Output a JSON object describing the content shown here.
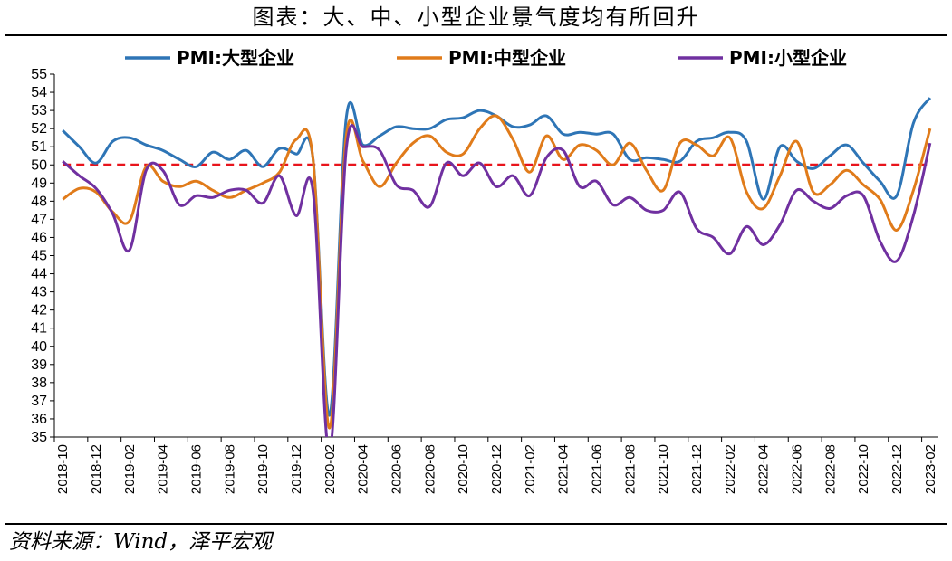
{
  "header": {
    "title": "图表：大、中、小型企业景气度均有所回升"
  },
  "footer": {
    "source": "资料来源：Wind，泽平宏观"
  },
  "chart_data": {
    "type": "line",
    "title": "图表：大、中、小型企业景气度均有所回升",
    "xlabel": "",
    "ylabel": "",
    "ylim": [
      35,
      55
    ],
    "yticks": [
      35,
      36,
      37,
      38,
      39,
      40,
      41,
      42,
      43,
      44,
      45,
      46,
      47,
      48,
      49,
      50,
      51,
      52,
      53,
      54,
      55
    ],
    "x": [
      "2018-10",
      "2018-11",
      "2018-12",
      "2019-01",
      "2019-02",
      "2019-03",
      "2019-04",
      "2019-05",
      "2019-06",
      "2019-07",
      "2019-08",
      "2019-09",
      "2019-10",
      "2019-11",
      "2019-12",
      "2020-01",
      "2020-02",
      "2020-03",
      "2020-04",
      "2020-05",
      "2020-06",
      "2020-07",
      "2020-08",
      "2020-09",
      "2020-10",
      "2020-11",
      "2020-12",
      "2021-01",
      "2021-02",
      "2021-03",
      "2021-04",
      "2021-05",
      "2021-06",
      "2021-07",
      "2021-08",
      "2021-09",
      "2021-10",
      "2021-11",
      "2021-12",
      "2022-01",
      "2022-02",
      "2022-03",
      "2022-04",
      "2022-05",
      "2022-06",
      "2022-07",
      "2022-08",
      "2022-09",
      "2022-10",
      "2022-11",
      "2022-12",
      "2023-01",
      "2023-02"
    ],
    "xtick_labels": [
      "2018-10",
      "2018-12",
      "2019-02",
      "2019-04",
      "2019-06",
      "2019-08",
      "2019-10",
      "2019-12",
      "2020-02",
      "2020-04",
      "2020-06",
      "2020-08",
      "2020-10",
      "2020-12",
      "2021-02",
      "2021-04",
      "2021-06",
      "2021-08",
      "2021-10",
      "2021-12",
      "2022-02",
      "2022-04",
      "2022-06",
      "2022-08",
      "2022-10",
      "2022-12",
      "2023-02"
    ],
    "legend_position": "top",
    "reference_line": {
      "value": 50,
      "color": "#e8141c",
      "style": "dashed"
    },
    "series": [
      {
        "name": "PMI:大型企业",
        "color": "#2e75b6",
        "values": [
          51.9,
          51.0,
          50.1,
          51.3,
          51.5,
          51.1,
          50.8,
          50.3,
          49.9,
          50.7,
          50.3,
          50.8,
          49.9,
          50.9,
          50.6,
          50.4,
          36.2,
          52.6,
          51.1,
          51.6,
          52.1,
          52.0,
          52.0,
          52.5,
          52.6,
          53.0,
          52.7,
          52.1,
          52.2,
          52.7,
          51.7,
          51.8,
          51.7,
          51.7,
          50.3,
          50.4,
          50.3,
          50.2,
          51.3,
          51.5,
          51.8,
          51.3,
          48.1,
          51.0,
          50.2,
          49.8,
          50.5,
          51.1,
          50.1,
          49.1,
          48.3,
          52.3,
          53.7
        ]
      },
      {
        "name": "PMI:中型企业",
        "color": "#e07b1a",
        "values": [
          48.1,
          48.7,
          48.5,
          47.4,
          46.9,
          49.9,
          49.1,
          48.8,
          49.1,
          48.6,
          48.2,
          48.6,
          49.0,
          49.6,
          51.4,
          50.4,
          35.5,
          51.6,
          50.2,
          48.8,
          50.1,
          51.2,
          51.6,
          50.7,
          50.6,
          52.0,
          52.7,
          51.4,
          49.6,
          51.6,
          50.3,
          51.1,
          50.8,
          50.0,
          51.2,
          49.7,
          48.6,
          51.2,
          51.1,
          50.5,
          51.5,
          48.5,
          47.6,
          49.4,
          51.3,
          48.5,
          48.9,
          49.7,
          48.9,
          48.1,
          46.4,
          48.6,
          52.0
        ]
      },
      {
        "name": "PMI:小型企业",
        "color": "#7030a0",
        "values": [
          50.2,
          49.4,
          48.7,
          47.3,
          45.3,
          49.7,
          49.7,
          47.8,
          48.3,
          48.2,
          48.6,
          48.6,
          47.9,
          49.4,
          47.2,
          48.6,
          34.1,
          50.9,
          51.0,
          50.8,
          48.9,
          48.6,
          47.7,
          50.1,
          49.4,
          50.1,
          48.8,
          49.4,
          48.3,
          50.4,
          50.8,
          48.8,
          49.1,
          47.8,
          48.2,
          47.5,
          47.5,
          48.5,
          46.5,
          46.0,
          45.1,
          46.6,
          45.6,
          46.7,
          48.6,
          48.0,
          47.6,
          48.3,
          48.3,
          45.8,
          44.7,
          47.2,
          51.2
        ]
      }
    ]
  }
}
